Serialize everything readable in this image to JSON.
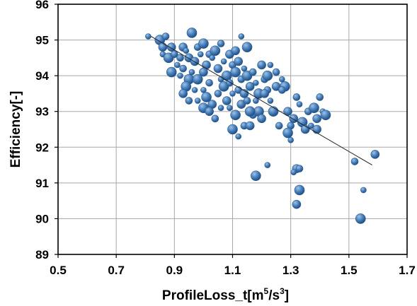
{
  "chart_data": {
    "type": "scatter",
    "xlabel": "ProfileLoss_t[m5/s3]",
    "xlabel_parts": {
      "main": "ProfileLoss_t[m",
      "sup1": "5",
      "mid": "/s",
      "sup2": "3",
      "end": "]"
    },
    "ylabel": "Efficiency[-]",
    "xlim": [
      0.5,
      1.7
    ],
    "ylim": [
      89,
      96
    ],
    "xticks": [
      "0.5",
      "0.7",
      "0.9",
      "1.1",
      "1.3",
      "1.5",
      "1.7"
    ],
    "yticks": [
      "89",
      "90",
      "91",
      "92",
      "93",
      "94",
      "95",
      "96"
    ],
    "grid": true,
    "marker_color": "#4a7fb8",
    "trendline": {
      "x": [
        0.82,
        1.58
      ],
      "y": [
        95.1,
        91.5
      ]
    },
    "series": [
      {
        "points": [
          [
            0.81,
            95.1
          ],
          [
            0.85,
            95.0
          ],
          [
            0.86,
            94.8
          ],
          [
            0.87,
            95.1
          ],
          [
            0.86,
            94.6
          ],
          [
            0.88,
            94.5
          ],
          [
            0.89,
            94.8
          ],
          [
            0.9,
            94.6
          ],
          [
            0.91,
            94.3
          ],
          [
            0.89,
            94.1
          ],
          [
            0.93,
            94.8
          ],
          [
            0.92,
            94.5
          ],
          [
            0.94,
            94.7
          ],
          [
            0.96,
            95.2
          ],
          [
            0.95,
            94.5
          ],
          [
            0.93,
            94.2
          ],
          [
            0.92,
            94.0
          ],
          [
            0.95,
            93.9
          ],
          [
            0.97,
            94.4
          ],
          [
            0.98,
            94.8
          ],
          [
            0.99,
            94.6
          ],
          [
            1.0,
            94.9
          ],
          [
            1.01,
            94.3
          ],
          [
            1.02,
            94.6
          ],
          [
            0.96,
            94.1
          ],
          [
            0.94,
            93.7
          ],
          [
            0.93,
            93.5
          ],
          [
            0.95,
            93.3
          ],
          [
            0.97,
            93.6
          ],
          [
            0.98,
            93.9
          ],
          [
            1.0,
            94.1
          ],
          [
            1.02,
            93.8
          ],
          [
            1.03,
            94.5
          ],
          [
            1.04,
            94.7
          ],
          [
            1.05,
            94.2
          ],
          [
            1.06,
            94.9
          ],
          [
            1.07,
            94.4
          ],
          [
            1.08,
            94.0
          ],
          [
            1.09,
            94.6
          ],
          [
            1.1,
            94.3
          ],
          [
            1.0,
            93.6
          ],
          [
            1.01,
            93.4
          ],
          [
            1.03,
            93.2
          ],
          [
            1.05,
            93.5
          ],
          [
            1.06,
            93.9
          ],
          [
            1.07,
            93.7
          ],
          [
            1.08,
            93.3
          ],
          [
            1.09,
            93.8
          ],
          [
            1.1,
            93.5
          ],
          [
            1.11,
            94.1
          ],
          [
            1.12,
            94.4
          ],
          [
            1.13,
            93.9
          ],
          [
            1.14,
            94.2
          ],
          [
            1.15,
            94.0
          ],
          [
            1.16,
            93.7
          ],
          [
            1.12,
            93.6
          ],
          [
            1.13,
            95.1
          ],
          [
            1.15,
            94.8
          ],
          [
            1.11,
            94.7
          ],
          [
            1.17,
            94.1
          ],
          [
            1.18,
            93.8
          ],
          [
            1.19,
            93.5
          ],
          [
            1.2,
            94.3
          ],
          [
            1.21,
            93.9
          ],
          [
            1.09,
            93.1
          ],
          [
            1.11,
            92.9
          ],
          [
            1.13,
            93.2
          ],
          [
            1.14,
            92.6
          ],
          [
            1.12,
            92.3
          ],
          [
            1.1,
            92.5
          ],
          [
            1.16,
            92.6
          ],
          [
            1.17,
            92.9
          ],
          [
            1.18,
            93.3
          ],
          [
            1.19,
            93.0
          ],
          [
            1.2,
            92.8
          ],
          [
            1.22,
            93.6
          ],
          [
            1.23,
            93.3
          ],
          [
            1.24,
            93.0
          ],
          [
            1.25,
            93.7
          ],
          [
            1.26,
            92.6
          ],
          [
            1.27,
            93.9
          ],
          [
            1.28,
            93.7
          ],
          [
            1.29,
            93.0
          ],
          [
            1.3,
            92.6
          ],
          [
            1.3,
            92.2
          ],
          [
            1.29,
            92.4
          ],
          [
            1.31,
            92.8
          ],
          [
            1.32,
            93.4
          ],
          [
            1.33,
            93.2
          ],
          [
            1.34,
            92.7
          ],
          [
            1.35,
            92.5
          ],
          [
            1.36,
            93.0
          ],
          [
            1.37,
            92.6
          ],
          [
            1.38,
            93.1
          ],
          [
            1.39,
            92.8
          ],
          [
            1.4,
            93.4
          ],
          [
            1.41,
            93.0
          ],
          [
            1.42,
            92.9
          ],
          [
            1.39,
            92.5
          ],
          [
            1.25,
            94.1
          ],
          [
            1.23,
            94.3
          ],
          [
            1.22,
            94.0
          ],
          [
            1.21,
            93.5
          ],
          [
            1.27,
            93.6
          ],
          [
            0.98,
            93.3
          ],
          [
            1.0,
            93.1
          ],
          [
            1.02,
            93.0
          ],
          [
            1.04,
            92.8
          ],
          [
            1.06,
            93.1
          ],
          [
            1.16,
            93.0
          ],
          [
            1.14,
            93.5
          ],
          [
            1.15,
            93.3
          ],
          [
            1.22,
            91.5
          ],
          [
            1.18,
            91.2
          ],
          [
            1.32,
            91.4
          ],
          [
            1.33,
            91.4
          ],
          [
            1.31,
            91.3
          ],
          [
            1.33,
            90.8
          ],
          [
            1.32,
            90.4
          ],
          [
            1.52,
            91.6
          ],
          [
            1.55,
            90.8
          ],
          [
            1.54,
            90.0
          ],
          [
            1.59,
            91.8
          ]
        ]
      }
    ]
  }
}
